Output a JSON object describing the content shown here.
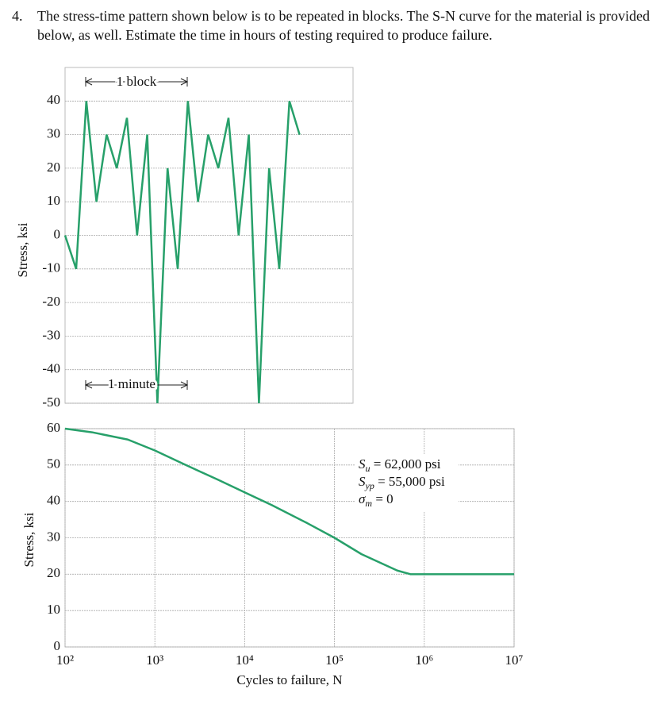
{
  "problem": {
    "number": "4.",
    "text": "The stress-time pattern shown below is to be repeated in blocks. The S-N curve for the material is provided below, as well. Estimate the time in hours of testing required to produce failure."
  },
  "chart_data": [
    {
      "type": "line",
      "y_label": "Stress, ksi",
      "ylim": [
        -50,
        50
      ],
      "yticks": [
        40,
        30,
        20,
        10,
        0,
        -10,
        -20,
        -30,
        -40,
        -50
      ],
      "grid": true,
      "color": "#27a06a",
      "values": [
        0,
        -10,
        40,
        10,
        30,
        20,
        35,
        0,
        30,
        -50,
        20,
        -10,
        40,
        10,
        30,
        20,
        35,
        0,
        30,
        -50,
        20,
        -10,
        40,
        30
      ],
      "annotations": [
        "1 block",
        "1 minute"
      ]
    },
    {
      "type": "line",
      "log_x": true,
      "x_label": "Cycles to failure, N",
      "y_label": "Stress, ksi",
      "grid": true,
      "color": "#27a06a",
      "xlim": [
        100,
        10000000
      ],
      "xticks": [
        {
          "value": 100,
          "label": "10²"
        },
        {
          "value": 1000,
          "label": "10³"
        },
        {
          "value": 10000,
          "label": "10⁴"
        },
        {
          "value": 100000,
          "label": "10⁵"
        },
        {
          "value": 1000000,
          "label": "10⁶"
        },
        {
          "value": 10000000,
          "label": "10⁷"
        }
      ],
      "ylim": [
        0,
        60
      ],
      "yticks": [
        0,
        10,
        20,
        30,
        40,
        50,
        60
      ],
      "x": [
        100,
        200,
        500,
        1000,
        2000,
        5000,
        10000,
        20000,
        50000,
        100000,
        200000,
        500000,
        700000,
        1000000,
        10000000
      ],
      "values": [
        60,
        59,
        57,
        54,
        50.5,
        46,
        42.5,
        39,
        34,
        30,
        25.5,
        21,
        20,
        20,
        20
      ],
      "annotations": [
        {
          "symbol": "S",
          "subscript": "u",
          "text": " = 62,000 psi"
        },
        {
          "symbol": "S",
          "subscript": "yp",
          "text": " = 55,000 psi"
        },
        {
          "symbol": "σ",
          "subscript": "m",
          "text": " = 0"
        }
      ]
    }
  ]
}
